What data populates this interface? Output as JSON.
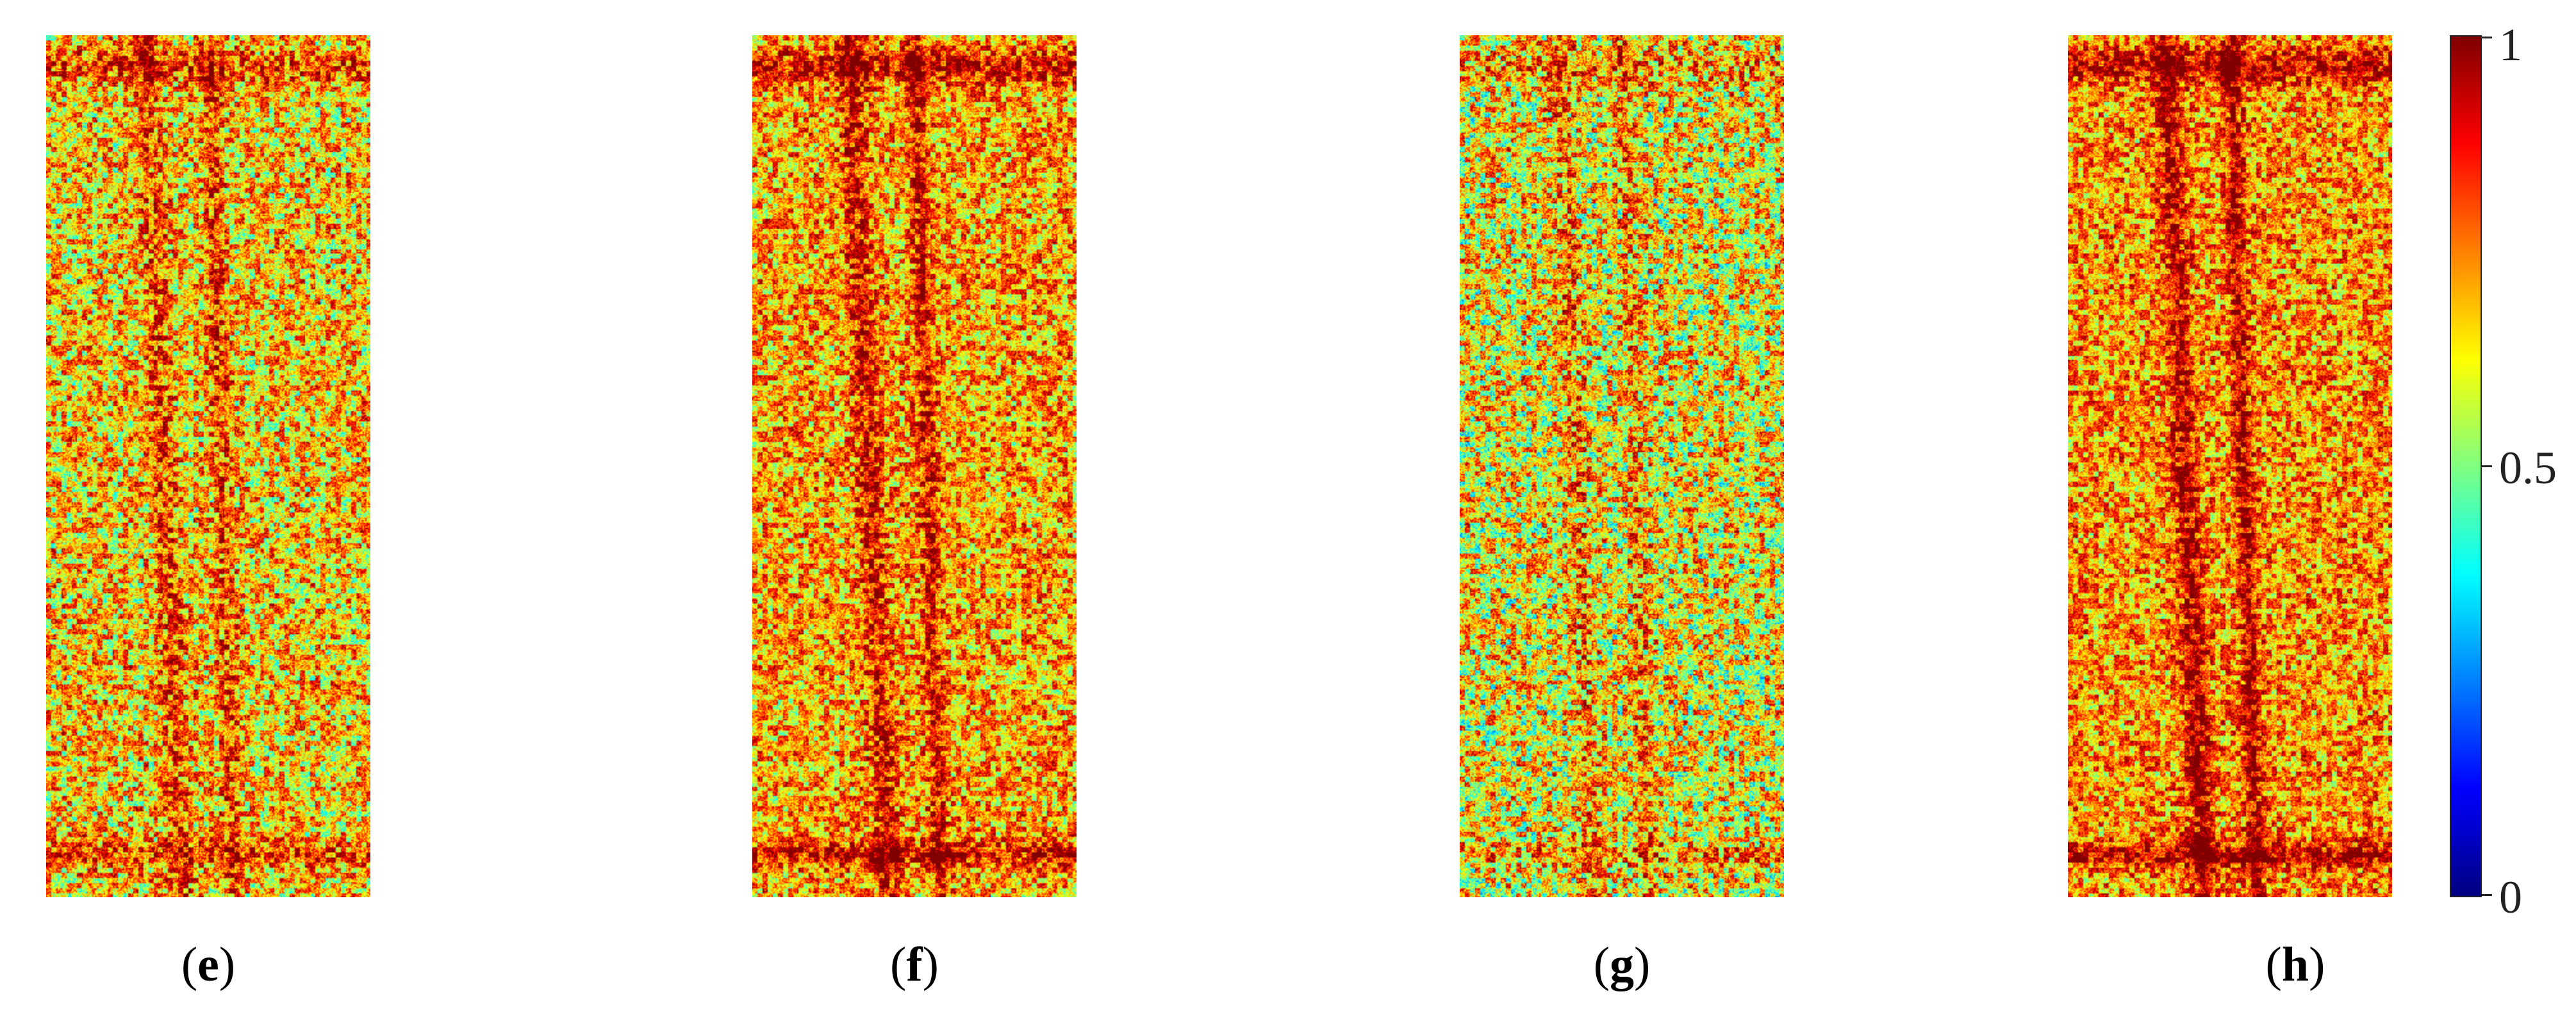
{
  "panels": [
    {
      "label": "e",
      "red_fraction": 0.55
    },
    {
      "label": "f",
      "red_fraction": 0.68
    },
    {
      "label": "g",
      "red_fraction": 0.4
    },
    {
      "label": "h",
      "red_fraction": 0.75
    }
  ],
  "colorbar": {
    "colormap": "jet",
    "min": 0,
    "max": 1,
    "ticks": [
      {
        "value": 1,
        "label": "1"
      },
      {
        "value": 0.5,
        "label": "0.5"
      },
      {
        "value": 0,
        "label": "0"
      }
    ]
  }
}
